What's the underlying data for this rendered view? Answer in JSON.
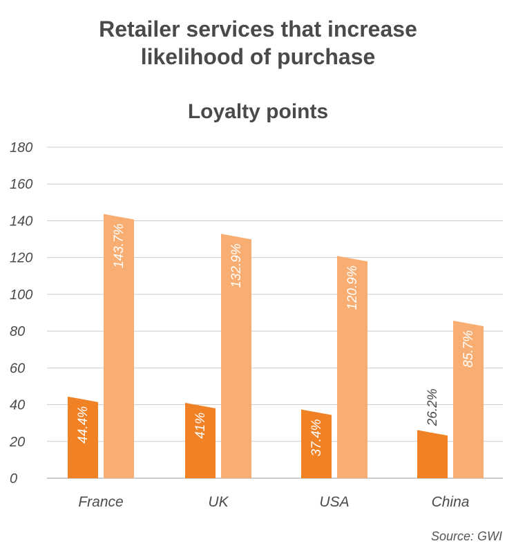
{
  "title_line1": "Retailer services that increase",
  "title_line2": "likelihood of purchase",
  "subtitle": "Loyalty points",
  "source": "Source: GWI",
  "colors": {
    "series1": "#f08225",
    "series2": "#f8ae72",
    "grid": "#cccccc",
    "text": "#4a4a4a"
  },
  "chart_data": {
    "type": "bar",
    "title": "Retailer services that increase likelihood of purchase",
    "subtitle": "Loyalty points",
    "categories": [
      "France",
      "UK",
      "USA",
      "China"
    ],
    "series": [
      {
        "values": [
          44.4,
          41,
          37.4,
          26.2
        ],
        "labels": [
          "44.4%",
          "41%",
          "37.4%",
          "26.2%"
        ]
      },
      {
        "values": [
          143.7,
          132.9,
          120.9,
          85.7
        ],
        "labels": [
          "143.7%",
          "132.9%",
          "120.9%",
          "85.7%"
        ]
      }
    ],
    "yticks": [
      0,
      20,
      40,
      60,
      80,
      100,
      120,
      140,
      160,
      180
    ],
    "ylim": [
      0,
      180
    ],
    "grid": true,
    "xlabel": "",
    "ylabel": ""
  }
}
